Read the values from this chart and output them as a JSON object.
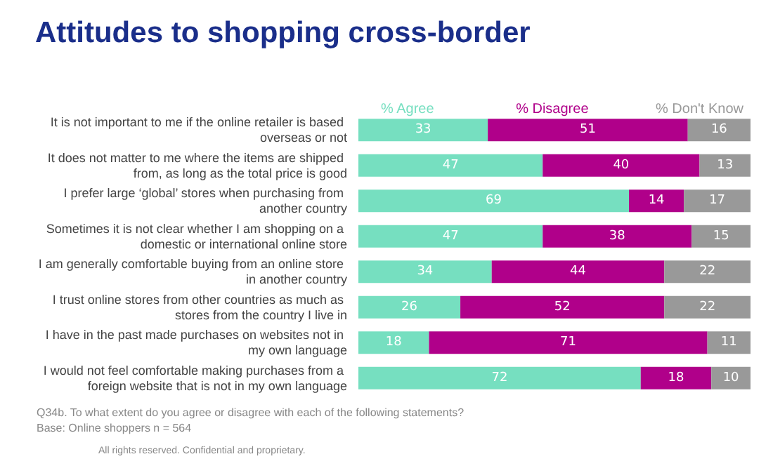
{
  "chart_data": {
    "type": "bar",
    "orientation": "horizontal",
    "stacked": true,
    "title": "Attitudes to shopping cross-border",
    "categories": [
      "It is not important to me if the online retailer is based overseas or not",
      "It does not matter to me where the items are shipped from, as long as the total price is good",
      "I prefer large ‘global’ stores when purchasing from another country",
      "Sometimes it is not clear whether I am shopping on a domestic or international online store",
      "I am generally comfortable buying from an online store in another country",
      "I trust online stores from other countries as much as stores from the country I live in",
      "I have in the past made purchases on websites not in my own language",
      "I would not feel comfortable making purchases from a foreign website that is not in my own language"
    ],
    "series": [
      {
        "name": "% Agree",
        "color": "#76dfc0",
        "values": [
          33,
          47,
          69,
          47,
          34,
          26,
          18,
          72
        ]
      },
      {
        "name": "% Disagree",
        "color": "#b0008a",
        "values": [
          51,
          40,
          14,
          38,
          44,
          52,
          71,
          18
        ]
      },
      {
        "name": "% Don't Know",
        "color": "#999999",
        "values": [
          16,
          13,
          17,
          15,
          22,
          22,
          11,
          10
        ]
      }
    ],
    "xlim": [
      0,
      100
    ],
    "data_labels": true,
    "legend": "top",
    "grid": false,
    "annotations": [
      "Q34b. To what extent do you agree or disagree with each of the following statements?",
      "Base: Online shoppers n = 564",
      "All rights reserved. Confidential and proprietary."
    ]
  }
}
